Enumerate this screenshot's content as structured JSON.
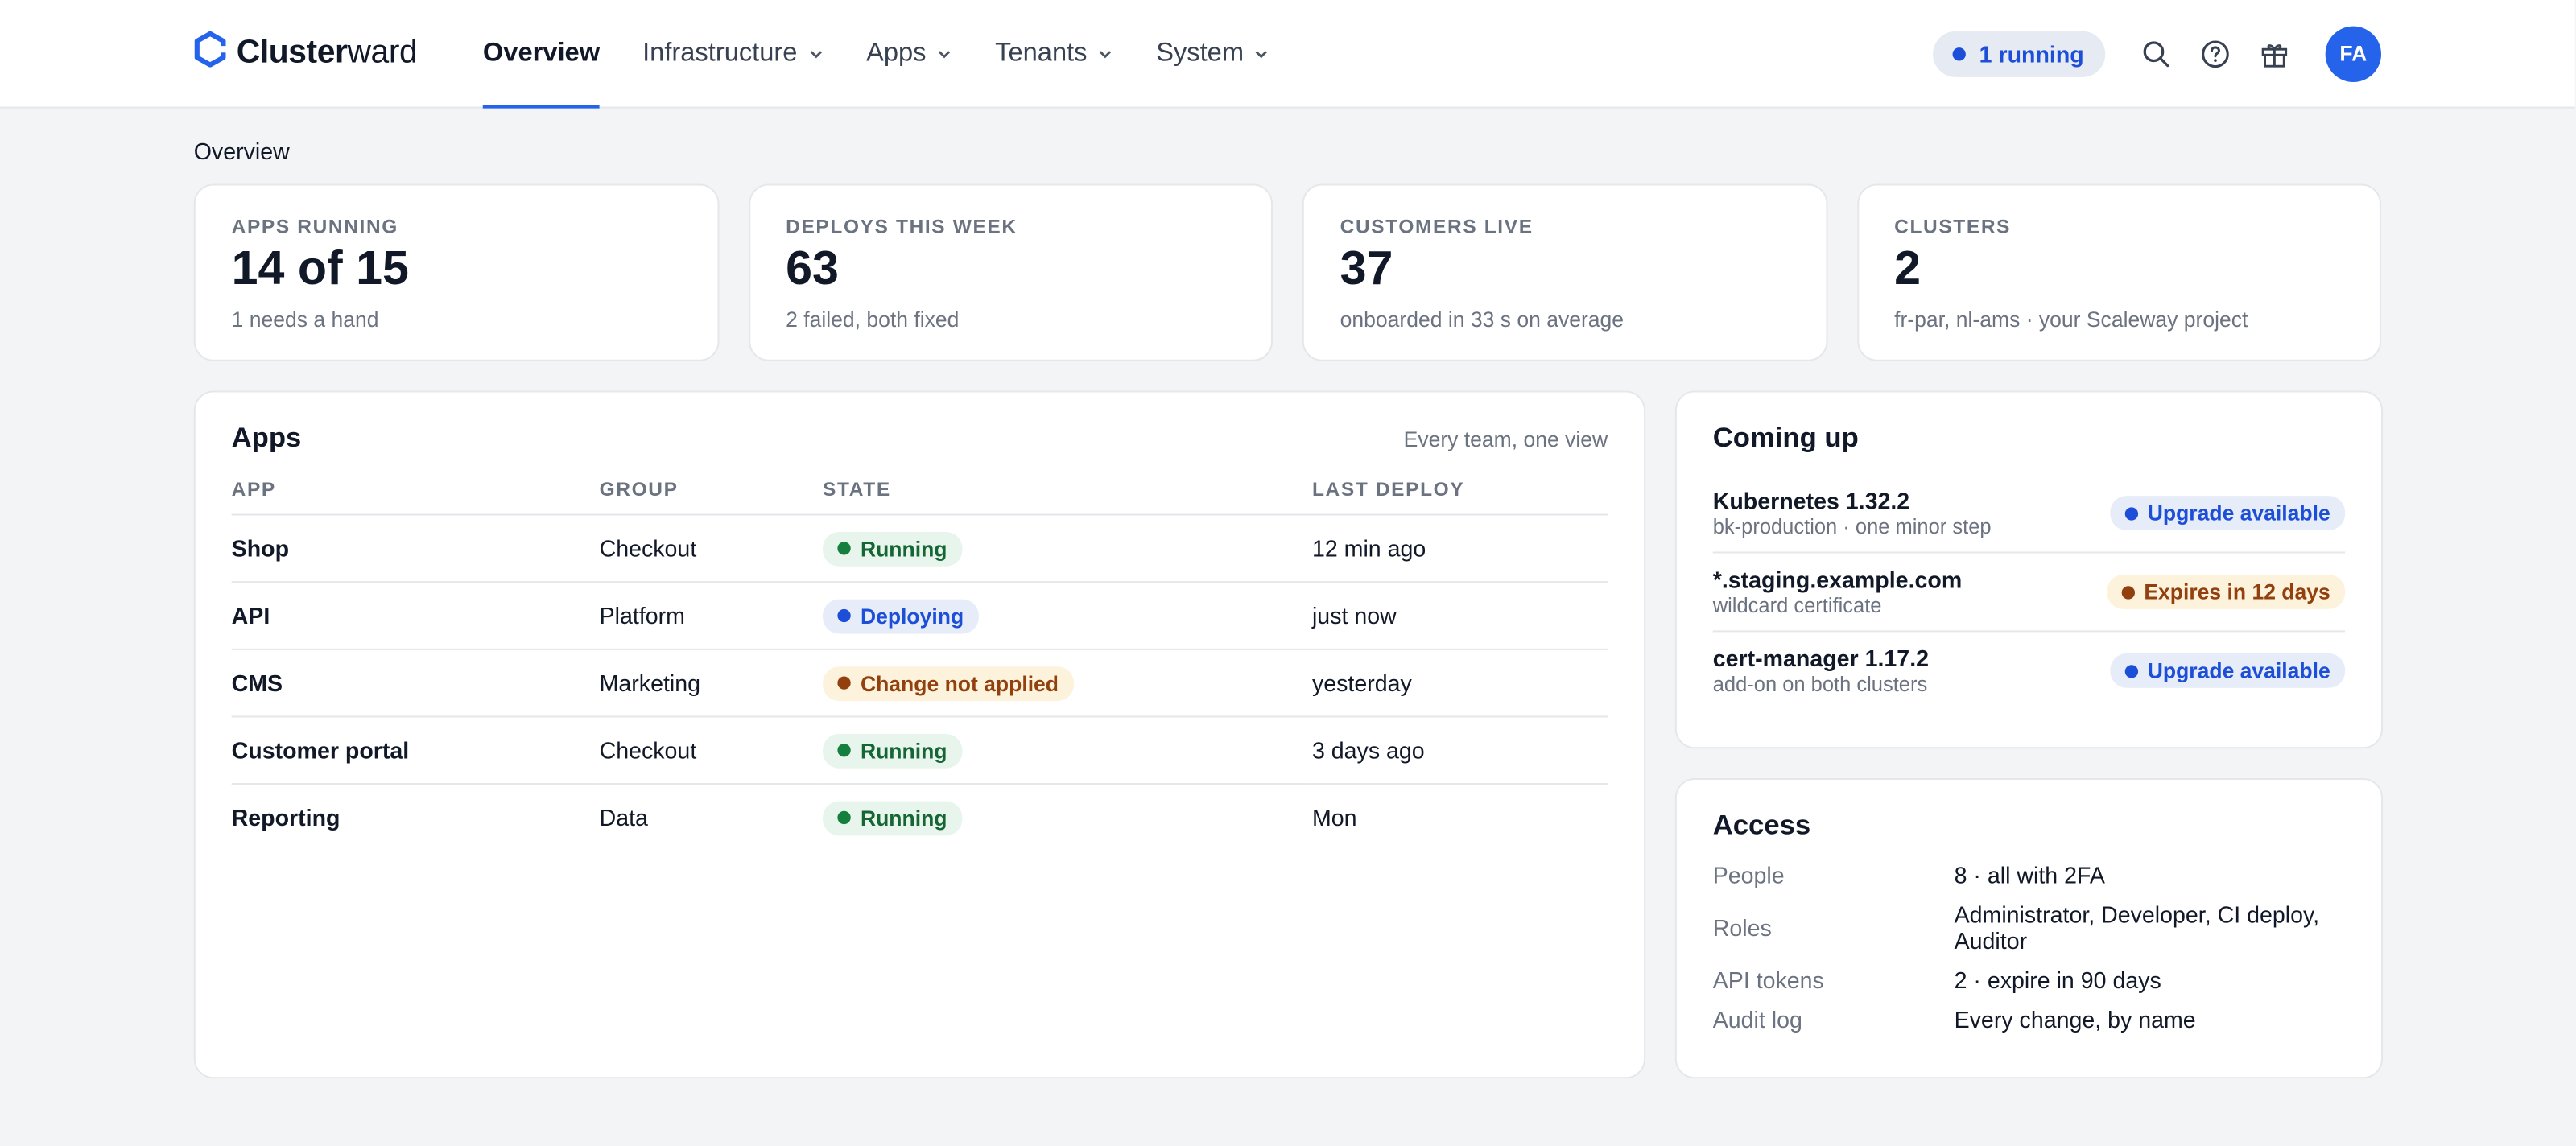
{
  "brand": {
    "name_bold": "Cluster",
    "name_rest": "ward"
  },
  "nav": [
    {
      "label": "Overview",
      "active": true,
      "dropdown": false
    },
    {
      "label": "Infrastructure",
      "active": false,
      "dropdown": true
    },
    {
      "label": "Apps",
      "active": false,
      "dropdown": true
    },
    {
      "label": "Tenants",
      "active": false,
      "dropdown": true
    },
    {
      "label": "System",
      "active": false,
      "dropdown": true
    }
  ],
  "header": {
    "running_label": "1 running",
    "avatar_initials": "FA",
    "icons": [
      "search-icon",
      "help-icon",
      "gift-icon"
    ]
  },
  "page_title": "Overview",
  "stats": [
    {
      "label": "APPS RUNNING",
      "value": "14 of 15",
      "sub": "1 needs a hand"
    },
    {
      "label": "DEPLOYS THIS WEEK",
      "value": "63",
      "sub": "2 failed, both fixed"
    },
    {
      "label": "CUSTOMERS LIVE",
      "value": "37",
      "sub": "onboarded in 33 s on average"
    },
    {
      "label": "CLUSTERS",
      "value": "2",
      "sub": "fr-par, nl-ams · your Scaleway project"
    }
  ],
  "apps": {
    "title": "Apps",
    "meta": "Every team, one view",
    "columns": [
      "APP",
      "GROUP",
      "STATE",
      "LAST DEPLOY"
    ],
    "rows": [
      {
        "app": "Shop",
        "group": "Checkout",
        "state": "Running",
        "state_tone": "green",
        "last_deploy": "12 min ago"
      },
      {
        "app": "API",
        "group": "Platform",
        "state": "Deploying",
        "state_tone": "blue",
        "last_deploy": "just now"
      },
      {
        "app": "CMS",
        "group": "Marketing",
        "state": "Change not applied",
        "state_tone": "amber",
        "last_deploy": "yesterday"
      },
      {
        "app": "Customer portal",
        "group": "Checkout",
        "state": "Running",
        "state_tone": "green",
        "last_deploy": "3 days ago"
      },
      {
        "app": "Reporting",
        "group": "Data",
        "state": "Running",
        "state_tone": "green",
        "last_deploy": "Mon"
      }
    ]
  },
  "coming_up": {
    "title": "Coming up",
    "items": [
      {
        "title": "Kubernetes 1.32.2",
        "sub": "bk-production · one minor step",
        "badge": "Upgrade available",
        "tone": "blue"
      },
      {
        "title": "*.staging.example.com",
        "sub": "wildcard certificate",
        "badge": "Expires in 12 days",
        "tone": "amber"
      },
      {
        "title": "cert-manager 1.17.2",
        "sub": "add-on on both clusters",
        "badge": "Upgrade available",
        "tone": "blue"
      }
    ]
  },
  "access": {
    "title": "Access",
    "rows": [
      {
        "key": "People",
        "value": "8 · all with 2FA"
      },
      {
        "key": "Roles",
        "value": "Administrator, Developer, CI deploy, Auditor"
      },
      {
        "key": "API tokens",
        "value": "2 · expire in 90 days"
      },
      {
        "key": "Audit log",
        "value": "Every change, by name"
      }
    ]
  },
  "colors": {
    "accent": "#2563eb",
    "green": "#15803d",
    "amber": "#92400e",
    "blue": "#1d4ed8"
  }
}
